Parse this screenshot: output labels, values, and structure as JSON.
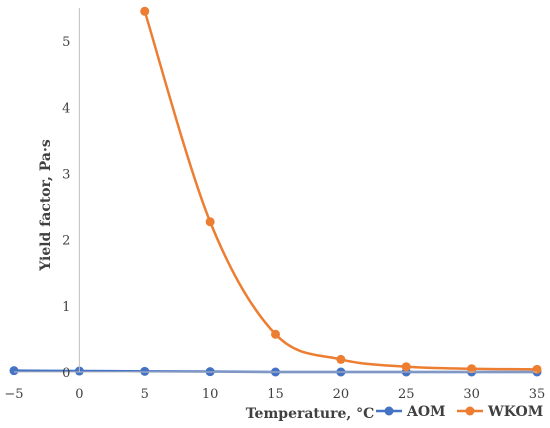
{
  "chart_data": {
    "type": "line",
    "xlabel": "Temperature, °C",
    "ylabel": "Yield factor, Pa·s",
    "xlim": [
      -5,
      35
    ],
    "ylim": [
      0,
      5.5
    ],
    "x_ticks": [
      -5,
      0,
      5,
      10,
      15,
      20,
      25,
      30,
      35
    ],
    "y_ticks": [
      0,
      1,
      2,
      3,
      4,
      5
    ],
    "smooth": true,
    "grid": false,
    "legend_position": "bottom-right",
    "series": [
      {
        "name": "AOM",
        "color": "#4472C4",
        "x": [
          -5,
          0,
          5,
          10,
          15,
          20,
          25,
          30,
          35
        ],
        "y": [
          0.02,
          0.015,
          0.01,
          0.005,
          0.0,
          0.0,
          0.0,
          0.0,
          0.0
        ]
      },
      {
        "name": "WKOM",
        "color": "#ED7D31",
        "x": [
          5,
          10,
          15,
          20,
          25,
          30,
          35
        ],
        "y": [
          5.45,
          2.27,
          0.57,
          0.19,
          0.08,
          0.05,
          0.04
        ]
      }
    ]
  }
}
